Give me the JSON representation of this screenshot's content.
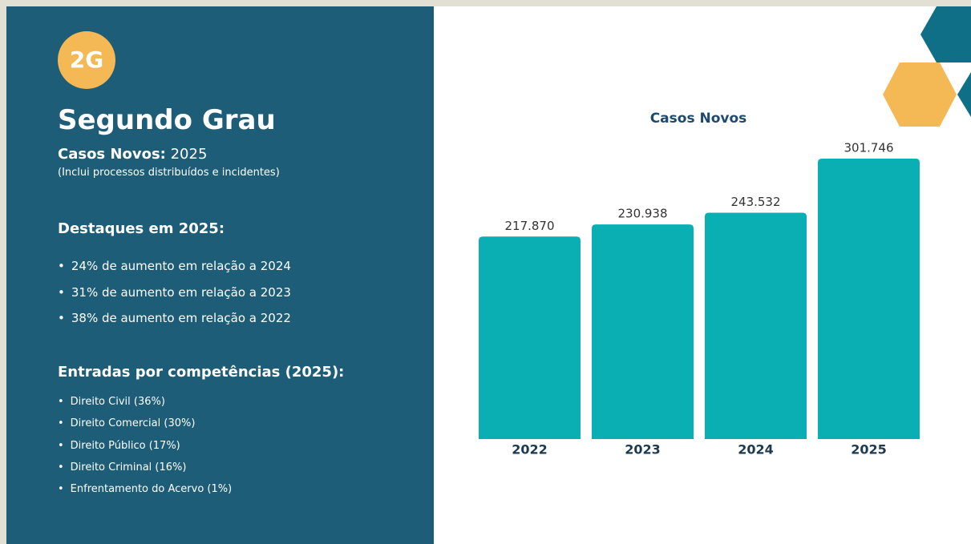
{
  "panel": {
    "badge": "2G",
    "title": "Segundo Grau",
    "subtitle_label": "Casos Novos:",
    "subtitle_year": "2025",
    "note": "(Inclui processos distribuídos e incidentes)",
    "highlights_title": "Destaques em 2025:",
    "highlights": [
      "24% de aumento em relação a 2024",
      "31% de aumento em relação a 2023",
      "38% de aumento em relação a 2022"
    ],
    "entries_title": "Entradas por competências (2025):",
    "entries": [
      "Direito Civil (36%)",
      "Direito Comercial (30%)",
      "Direito Público (17%)",
      "Direito Criminal (16%)",
      "Enfrentamento do Acervo (1%)"
    ]
  },
  "chart_data": {
    "type": "bar",
    "title": "Casos Novos",
    "categories": [
      "2022",
      "2023",
      "2024",
      "2025"
    ],
    "values": [
      217870,
      230938,
      243532,
      301746
    ],
    "value_labels": [
      "217.870",
      "230.938",
      "243.532",
      "301.746"
    ],
    "color": "#0aafb4"
  }
}
